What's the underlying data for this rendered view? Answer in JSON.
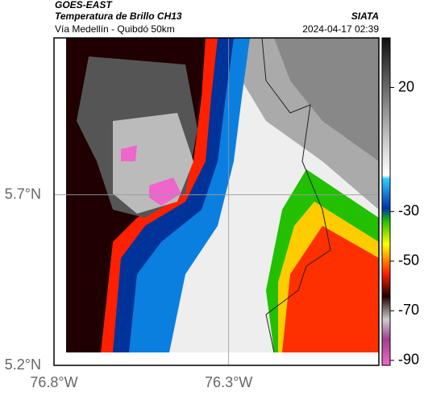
{
  "header": {
    "title": "GOES-EAST",
    "subtitle": "Temperatura de Brillo CH13",
    "route": "Vía Medellín - Quibdó 50km",
    "source": "SIATA",
    "timestamp": "2024-04-17 02:39"
  },
  "map": {
    "xlim": [
      -76.8,
      -75.87
    ],
    "ylim": [
      5.2,
      6.16
    ],
    "xticks": [
      {
        "value": -76.8,
        "label": "76.8°W"
      },
      {
        "value": -76.3,
        "label": "76.3°W"
      }
    ],
    "yticks": [
      {
        "value": 5.2,
        "label": "5.2°N"
      },
      {
        "value": 5.7,
        "label": "5.7°N"
      }
    ]
  },
  "colorbar": {
    "lim": [
      -92,
      40
    ],
    "ticks": [
      20,
      -30,
      -50,
      -70,
      -90
    ]
  }
}
